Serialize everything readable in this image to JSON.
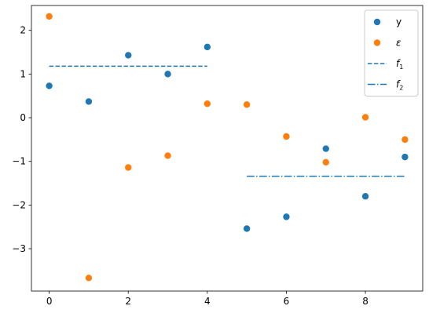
{
  "chart_data": {
    "type": "scatter",
    "title": "",
    "xlabel": "",
    "ylabel": "",
    "xlim": [
      -0.45,
      9.45
    ],
    "ylim": [
      -3.97,
      2.57
    ],
    "x_ticks": [
      0,
      2,
      4,
      6,
      8
    ],
    "x_tick_labels": [
      "0",
      "2",
      "4",
      "6",
      "8"
    ],
    "y_ticks": [
      -3,
      -2,
      -1,
      0,
      1,
      2
    ],
    "y_tick_labels": [
      "−3",
      "−2",
      "−1",
      "0",
      "1",
      "2"
    ],
    "grid": false,
    "legend_position": "top-right",
    "series": [
      {
        "name": "y",
        "kind": "scatter",
        "color": "#1f77b4",
        "x": [
          0,
          1,
          2,
          3,
          4,
          5,
          6,
          7,
          8,
          9
        ],
        "y": [
          0.73,
          0.37,
          1.43,
          1.0,
          1.62,
          -2.54,
          -2.27,
          -0.71,
          -1.8,
          -0.9
        ]
      },
      {
        "name": "ε",
        "kind": "scatter",
        "color": "#ff7f0e",
        "x": [
          0,
          1,
          2,
          3,
          4,
          5,
          6,
          7,
          8,
          9
        ],
        "y": [
          2.32,
          -3.67,
          -1.14,
          -0.87,
          0.32,
          0.3,
          -0.43,
          -1.02,
          0.01,
          -0.5
        ]
      },
      {
        "name": "f",
        "name_sub": "1",
        "kind": "line",
        "style": "dashed",
        "color": "#1f77b4",
        "x": [
          0,
          4
        ],
        "y": [
          1.18,
          1.18
        ]
      },
      {
        "name": "f",
        "name_sub": "2",
        "kind": "line",
        "style": "dashdot",
        "color": "#1f77b4",
        "x": [
          5,
          9
        ],
        "y": [
          -1.34,
          -1.34
        ]
      }
    ]
  }
}
